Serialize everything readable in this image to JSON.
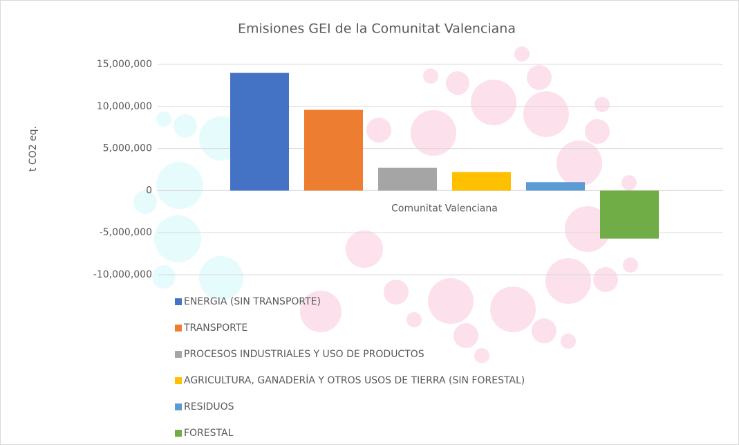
{
  "chart_data": {
    "type": "bar",
    "title": "Emisiones GEI de la Comunitat Valenciana",
    "y_label": "t CO2 eq.",
    "categories": [
      "Comunitat Valenciana"
    ],
    "series": [
      {
        "name": "ENERGIA (SIN TRANSPORTE)",
        "color": "#4472c4",
        "values": [
          14000000
        ]
      },
      {
        "name": "TRANSPORTE",
        "color": "#ed7d31",
        "values": [
          9600000
        ]
      },
      {
        "name": "PROCESOS INDUSTRIALES Y USO DE PRODUCTOS",
        "color": "#a5a5a5",
        "values": [
          2700000
        ]
      },
      {
        "name": "AGRICULTURA, GANADERÍA Y OTROS USOS DE TIERRA (SIN FORESTAL)",
        "color": "#ffc000",
        "values": [
          2200000
        ]
      },
      {
        "name": "RESIDUOS",
        "color": "#5b9bd5",
        "values": [
          1000000
        ]
      },
      {
        "name": "FORESTAL",
        "color": "#70ad47",
        "values": [
          -5700000
        ]
      }
    ],
    "ylim": [
      -10000000,
      15000000
    ],
    "yticks": [
      {
        "value": -10000000,
        "label": "-10,000,000"
      },
      {
        "value": -5000000,
        "label": "-5,000,000"
      },
      0,
      {
        "value": 5000000,
        "label": "5,000,000"
      },
      {
        "value": 10000000,
        "label": "10,000,000"
      },
      {
        "value": 15000000,
        "label": "15,000,000"
      }
    ],
    "grid": true,
    "legend": "bottom-left"
  }
}
